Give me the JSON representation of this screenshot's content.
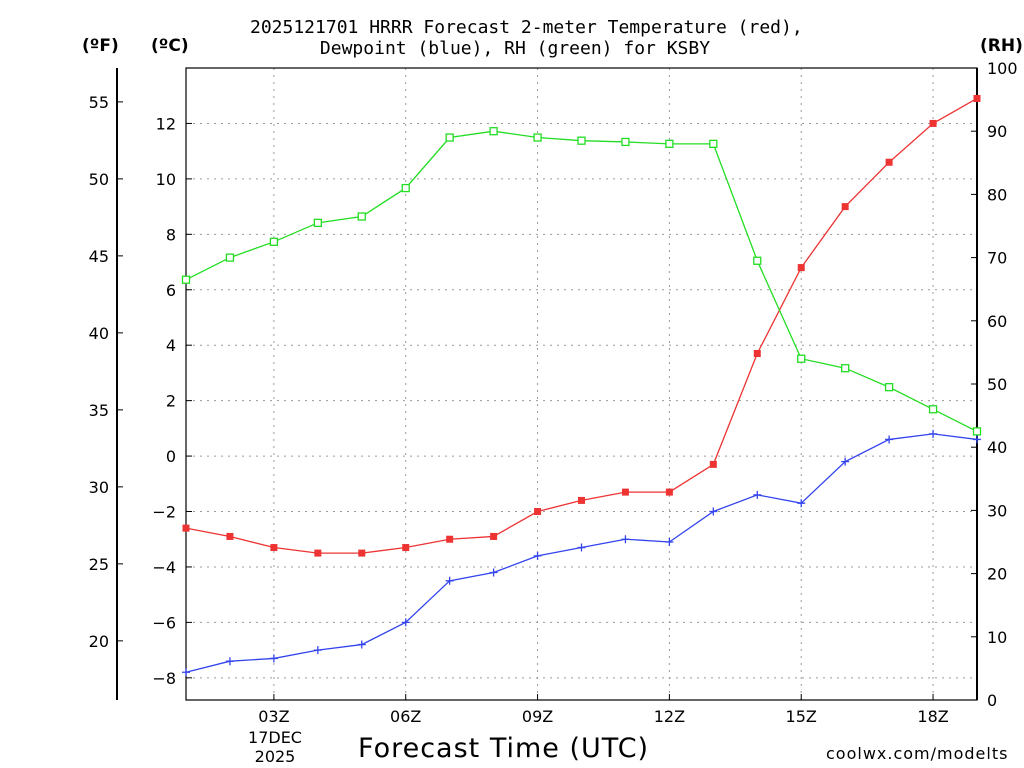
{
  "header": {
    "title_line1": "2025121701 HRRR Forecast 2-meter Temperature (red),",
    "title_line2": "Dewpoint (blue), RH (green) for KSBY",
    "unit_f": "(ºF)",
    "unit_c": "(ºC)",
    "unit_rh": "(RH)"
  },
  "footer": {
    "x_axis_title": "Forecast Time (UTC)",
    "date_line1": "17DEC",
    "date_line2": "2025",
    "watermark": "coolwx.com/modelts"
  },
  "chart_data": {
    "type": "line",
    "title": "2025121701 HRRR Forecast 2-meter Temperature (red), Dewpoint (blue), RH (green) for KSBY",
    "xlabel": "Forecast Time (UTC)",
    "x": [
      1,
      2,
      3,
      4,
      5,
      6,
      7,
      8,
      9,
      10,
      11,
      12,
      13,
      14,
      15,
      16,
      17,
      18,
      19
    ],
    "xlim": [
      1,
      19
    ],
    "x_ticks": [
      {
        "x": 3,
        "label": "03Z"
      },
      {
        "x": 6,
        "label": "06Z"
      },
      {
        "x": 9,
        "label": "09Z"
      },
      {
        "x": 12,
        "label": "12Z"
      },
      {
        "x": 15,
        "label": "15Z"
      },
      {
        "x": 18,
        "label": "18Z"
      }
    ],
    "y_left_c": {
      "label": "(ºC)",
      "range": [
        -8.8,
        14.0
      ],
      "ticks": [
        -8,
        -6,
        -4,
        -2,
        0,
        2,
        4,
        6,
        8,
        10,
        12
      ]
    },
    "y_left_f": {
      "label": "(ºF)",
      "range": [
        16.16,
        57.2
      ],
      "ticks": [
        20,
        25,
        30,
        35,
        40,
        45,
        50,
        55
      ]
    },
    "y_right_rh": {
      "label": "(RH)",
      "range": [
        0,
        100
      ],
      "ticks": [
        0,
        10,
        20,
        30,
        40,
        50,
        60,
        70,
        80,
        90,
        100
      ]
    },
    "grid": true,
    "series": [
      {
        "name": "Temperature",
        "axis": "c",
        "color": "#ee3333",
        "marker": "filled-square",
        "values": [
          -2.6,
          -2.9,
          -3.3,
          -3.5,
          -3.5,
          -3.3,
          -3.0,
          -2.9,
          -2.0,
          -1.6,
          -1.3,
          -1.3,
          -0.3,
          3.7,
          6.8,
          9.0,
          10.6,
          12.0,
          12.9
        ]
      },
      {
        "name": "Dewpoint",
        "axis": "c",
        "color": "#3344ee",
        "marker": "plus",
        "values": [
          -7.8,
          -7.4,
          -7.3,
          -7.0,
          -6.8,
          -6.0,
          -4.5,
          -4.2,
          -3.6,
          -3.3,
          -3.0,
          -3.1,
          -2.0,
          -1.4,
          -1.7,
          -0.2,
          0.6,
          0.8,
          0.6
        ]
      },
      {
        "name": "RH",
        "axis": "rh",
        "color": "#22dd22",
        "marker": "open-square",
        "values": [
          66.5,
          70.0,
          72.5,
          75.5,
          76.5,
          81.0,
          89.0,
          90.0,
          89.0,
          88.5,
          88.3,
          88.0,
          88.0,
          69.5,
          54.0,
          52.5,
          49.5,
          46.0,
          42.5
        ]
      }
    ]
  }
}
